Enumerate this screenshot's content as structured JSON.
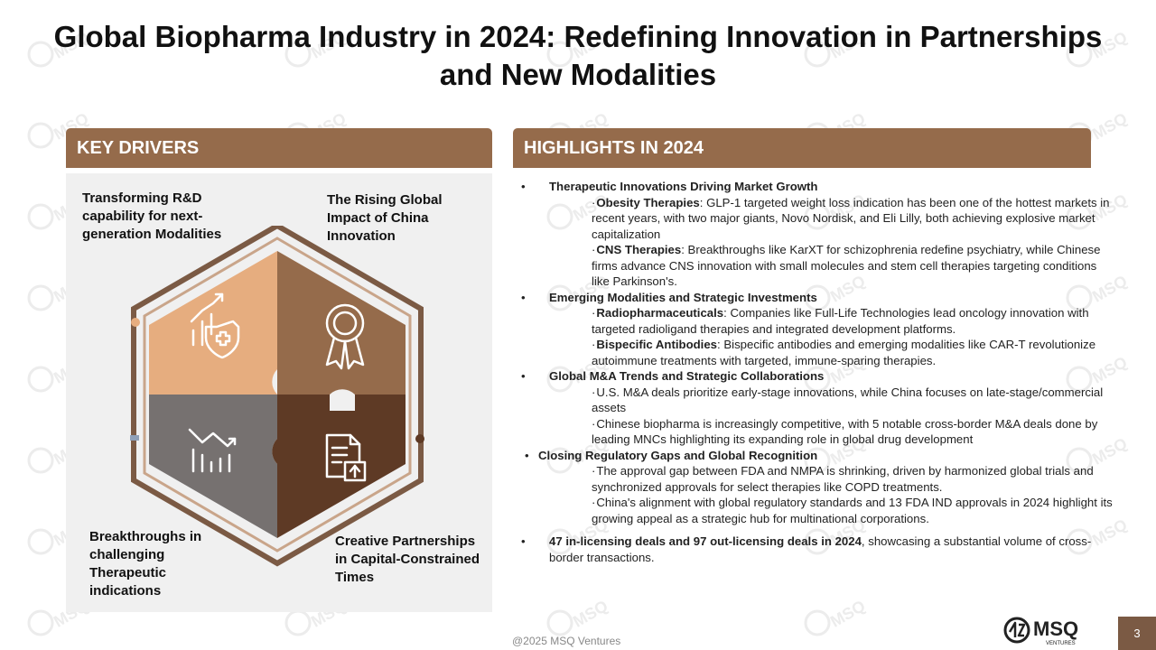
{
  "title": "Global Biopharma Industry in 2024: Redefining Innovation in Partnerships and New Modalities",
  "key_drivers": {
    "header": "KEY DRIVERS",
    "items": [
      {
        "label": "Transforming R&D capability for next-generation Modalities",
        "icon": "growth-health-icon"
      },
      {
        "label": "The Rising Global Impact of China Innovation",
        "icon": "award-ribbon-icon"
      },
      {
        "label": "Breakthroughs in challenging Therapeutic indications",
        "icon": "chart-decline-icon"
      },
      {
        "label": "Creative Partnerships in Capital-Constrained Times",
        "icon": "document-upload-icon"
      }
    ]
  },
  "highlights": {
    "header": "HIGHLIGHTS IN 2024",
    "items": [
      {
        "bullet": "•",
        "heading": "Therapeutic Innovations Driving Market Growth",
        "subs": [
          {
            "bold": "Obesity Therapies",
            "text": ": GLP-1 targeted weight loss indication has been one of the hottest markets in recent years, with two major giants, Novo Nordisk, and Eli Lilly, both achieving explosive market capitalization"
          },
          {
            "bold": "CNS Therapies",
            "text": ": Breakthroughs like KarXT for schizophrenia redefine psychiatry, while Chinese firms advance CNS innovation with small molecules and stem cell therapies targeting conditions like Parkinson's."
          }
        ]
      },
      {
        "bullet": "•",
        "heading": "Emerging Modalities and Strategic Investments",
        "subs": [
          {
            "bold": "Radiopharmaceuticals",
            "text": ": Companies like Full-Life Technologies lead oncology innovation with targeted radioligand therapies and integrated development platforms."
          },
          {
            "bold": "Bispecific Antibodies",
            "text": ": Bispecific antibodies and emerging modalities like CAR-T revolutionize autoimmune treatments with targeted, immune-sparing therapies."
          }
        ]
      },
      {
        "bullet": "•",
        "heading": "Global M&A Trends and Strategic Collaborations",
        "subs": [
          {
            "bold": "",
            "text": "U.S. M&A deals prioritize early-stage innovations, while China focuses on late-stage/commercial assets"
          },
          {
            "bold": "",
            "text": "Chinese biopharma is increasingly competitive, with 5 notable cross-border M&A deals done by leading MNCs highlighting its expanding role in global drug development"
          }
        ]
      },
      {
        "bullet": "•",
        "heading": "Closing Regulatory Gaps and Global Recognition",
        "subs": [
          {
            "bold": "",
            "text": "The approval gap between FDA and NMPA is shrinking, driven by harmonized global trials and synchronized approvals for select therapies like COPD treatments."
          },
          {
            "bold": "",
            "text": "China's alignment with global regulatory standards and 13 FDA IND approvals in 2024 highlight its growing appeal as a strategic hub for multinational corporations."
          }
        ]
      }
    ],
    "closing": {
      "bullet": "•",
      "bold": "47 in-licensing deals and 97 out-licensing deals in 2024",
      "text": ", showcasing a substantial volume of cross-border transactions."
    },
    "sub_marker": "·"
  },
  "footer": {
    "copyright": "@2025 MSQ Ventures",
    "logo_text": "MSQ",
    "logo_subtext": "VENTURES",
    "page_number": "3"
  },
  "colors": {
    "header_bg": "#956b4b",
    "tile_light": "#e6ad7f",
    "tile_mid": "#956b4b",
    "tile_grey": "#767170",
    "tile_dark": "#5e3a25",
    "frame": "#7b5a44"
  }
}
